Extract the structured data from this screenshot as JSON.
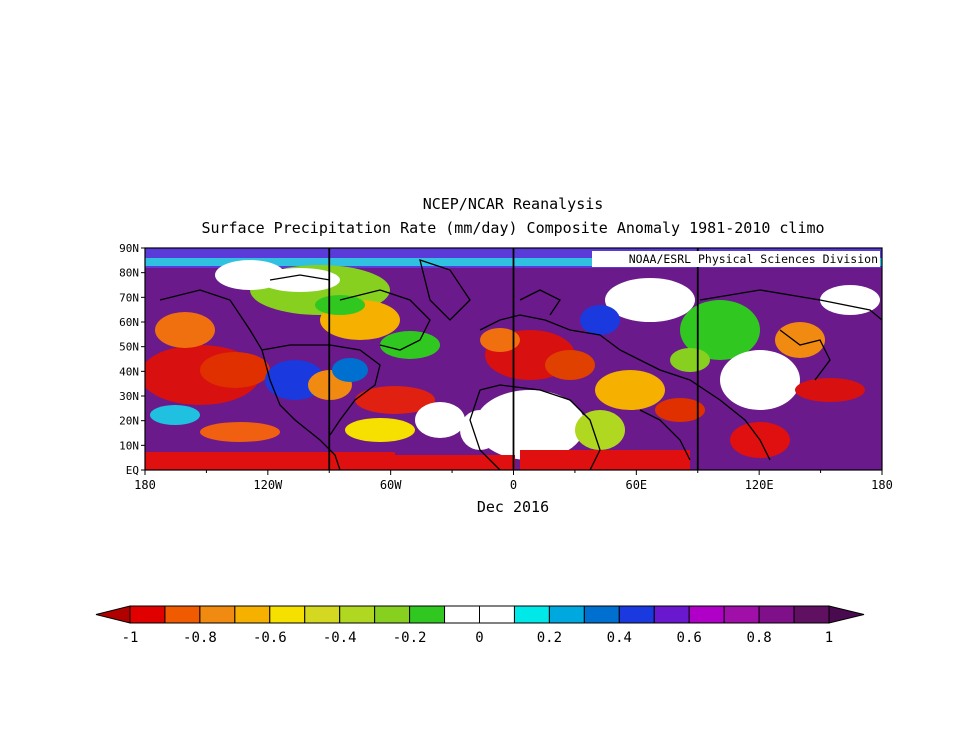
{
  "title": {
    "line1": "NCEP/NCAR Reanalysis",
    "line2": "Surface Precipitation Rate (mm/day) Composite Anomaly 1981-2010 climo"
  },
  "credit": "NOAA/ESRL Physical Sciences Division",
  "date_label": "Dec 2016",
  "map": {
    "lon_range": [
      -180,
      180
    ],
    "lat_range": [
      0,
      90
    ],
    "lon_ticks": [
      {
        "lon": -180,
        "label": "180"
      },
      {
        "lon": -120,
        "label": "120W"
      },
      {
        "lon": -60,
        "label": "60W"
      },
      {
        "lon": 0,
        "label": "0"
      },
      {
        "lon": 60,
        "label": "60E"
      },
      {
        "lon": 120,
        "label": "120E"
      },
      {
        "lon": 180,
        "label": "180"
      }
    ],
    "lat_ticks": [
      {
        "lat": 0,
        "label": "EQ"
      },
      {
        "lat": 10,
        "label": "10N"
      },
      {
        "lat": 20,
        "label": "20N"
      },
      {
        "lat": 30,
        "label": "30N"
      },
      {
        "lat": 40,
        "label": "40N"
      },
      {
        "lat": 50,
        "label": "50N"
      },
      {
        "lat": 60,
        "label": "60N"
      },
      {
        "lat": 70,
        "label": "70N"
      },
      {
        "lat": 80,
        "label": "80N"
      },
      {
        "lat": 90,
        "label": "90N"
      }
    ],
    "meridian_lines": [
      -90,
      0,
      90
    ]
  },
  "colorbar": {
    "labels": [
      "-1",
      "-0.8",
      "-0.6",
      "-0.4",
      "-0.2",
      "0",
      "0.2",
      "0.4",
      "0.6",
      "0.8",
      "1"
    ],
    "colors": [
      "#e00000",
      "#f05a00",
      "#f08a10",
      "#f5b000",
      "#f5e000",
      "#d4d820",
      "#b0d820",
      "#88d020",
      "#30c820",
      "#ffffff",
      "#ffffff",
      "#00e8e8",
      "#00a8e0",
      "#0070d0",
      "#1a3ae0",
      "#6a18d0",
      "#b000c8",
      "#a010a8",
      "#80108a",
      "#601060"
    ],
    "below_color": "#b00000",
    "above_color": "#4a0a50"
  }
}
